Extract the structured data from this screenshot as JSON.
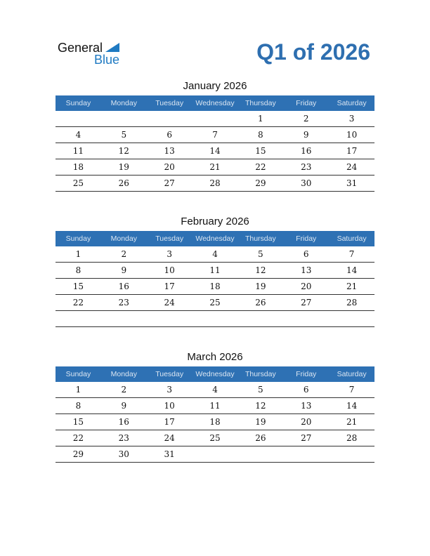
{
  "logo": {
    "line1": "General",
    "line2": "Blue"
  },
  "title": "Q1 of 2026",
  "weekdays": [
    "Sunday",
    "Monday",
    "Tuesday",
    "Wednesday",
    "Thursday",
    "Friday",
    "Saturday"
  ],
  "months": [
    {
      "name": "January 2026",
      "weeks": [
        [
          "",
          "",
          "",
          "",
          "1",
          "2",
          "3"
        ],
        [
          "4",
          "5",
          "6",
          "7",
          "8",
          "9",
          "10"
        ],
        [
          "11",
          "12",
          "13",
          "14",
          "15",
          "16",
          "17"
        ],
        [
          "18",
          "19",
          "20",
          "21",
          "22",
          "23",
          "24"
        ],
        [
          "25",
          "26",
          "27",
          "28",
          "29",
          "30",
          "31"
        ]
      ]
    },
    {
      "name": "February 2026",
      "weeks": [
        [
          "1",
          "2",
          "3",
          "4",
          "5",
          "6",
          "7"
        ],
        [
          "8",
          "9",
          "10",
          "11",
          "12",
          "13",
          "14"
        ],
        [
          "15",
          "16",
          "17",
          "18",
          "19",
          "20",
          "21"
        ],
        [
          "22",
          "23",
          "24",
          "25",
          "26",
          "27",
          "28"
        ],
        [
          "",
          "",
          "",
          "",
          "",
          "",
          ""
        ]
      ]
    },
    {
      "name": "March 2026",
      "weeks": [
        [
          "1",
          "2",
          "3",
          "4",
          "5",
          "6",
          "7"
        ],
        [
          "8",
          "9",
          "10",
          "11",
          "12",
          "13",
          "14"
        ],
        [
          "15",
          "16",
          "17",
          "18",
          "19",
          "20",
          "21"
        ],
        [
          "22",
          "23",
          "24",
          "25",
          "26",
          "27",
          "28"
        ],
        [
          "29",
          "30",
          "31",
          "",
          "",
          "",
          ""
        ]
      ]
    }
  ],
  "colors": {
    "header": "#2e71b4",
    "accent": "#2e6fb0"
  }
}
